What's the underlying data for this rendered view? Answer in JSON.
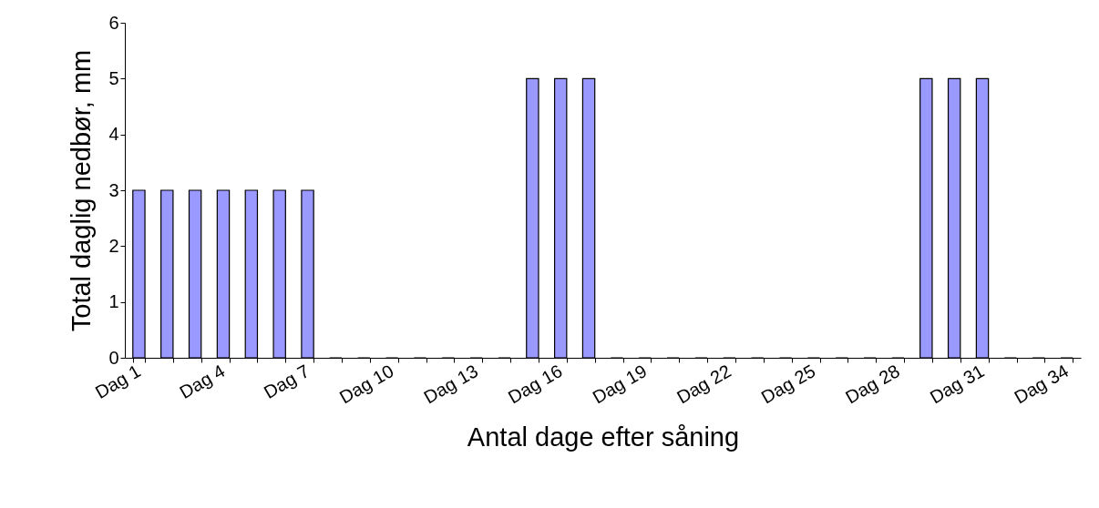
{
  "chart_data": {
    "type": "bar",
    "xlabel": "Antal dage efter såning",
    "ylabel": "Total daglig nedbør, mm",
    "categories": [
      "Dag 1",
      null,
      null,
      "Dag 4",
      null,
      null,
      "Dag 7",
      null,
      null,
      "Dag 10",
      null,
      null,
      "Dag 13",
      null,
      null,
      "Dag 16",
      null,
      null,
      "Dag 19",
      null,
      null,
      "Dag 22",
      null,
      null,
      "Dag 25",
      null,
      null,
      "Dag 28",
      null,
      null,
      "Dag 31",
      null,
      null,
      "Dag 34"
    ],
    "values": [
      3,
      3,
      3,
      3,
      3,
      3,
      3,
      0,
      0,
      0,
      0,
      0,
      0,
      0,
      5,
      5,
      5,
      0,
      0,
      0,
      0,
      0,
      0,
      0,
      0,
      0,
      0,
      0,
      5,
      5,
      5,
      0,
      0,
      0
    ],
    "color": "#9999ff",
    "ylim": [
      0,
      6
    ],
    "yticks": [
      0,
      1,
      2,
      3,
      4,
      5,
      6
    ],
    "grid": false
  }
}
